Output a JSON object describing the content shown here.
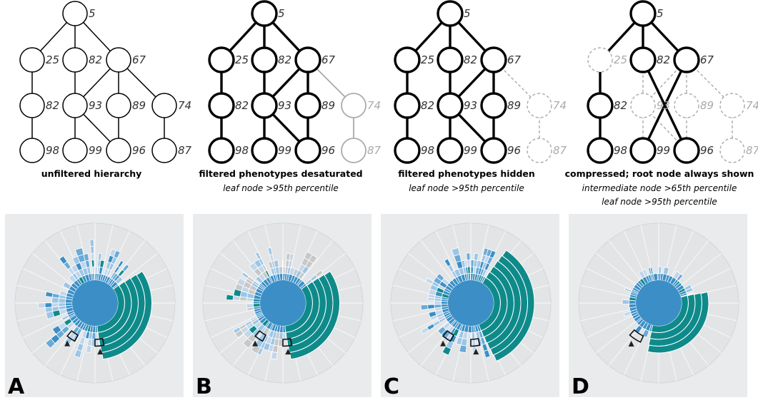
{
  "hierarchies": [
    {
      "caption": "unfiltered hierarchy",
      "subcaptions": [],
      "nodes": {
        "n5": {
          "label": "5",
          "state": "normal"
        },
        "n25": {
          "label": "25",
          "state": "normal"
        },
        "n82a": {
          "label": "82",
          "state": "normal"
        },
        "n67": {
          "label": "67",
          "state": "normal"
        },
        "n82b": {
          "label": "82",
          "state": "normal"
        },
        "n93": {
          "label": "93",
          "state": "normal"
        },
        "n89": {
          "label": "89",
          "state": "normal"
        },
        "n74": {
          "label": "74",
          "state": "normal"
        },
        "n98": {
          "label": "98",
          "state": "normal"
        },
        "n99": {
          "label": "99",
          "state": "normal"
        },
        "n96": {
          "label": "96",
          "state": "normal"
        },
        "n87": {
          "label": "87",
          "state": "normal"
        }
      },
      "edges": [
        [
          "n5",
          "n25",
          "normal"
        ],
        [
          "n5",
          "n82a",
          "normal"
        ],
        [
          "n5",
          "n67",
          "normal"
        ],
        [
          "n25",
          "n82b",
          "normal"
        ],
        [
          "n82a",
          "n93",
          "normal"
        ],
        [
          "n67",
          "n93",
          "normal"
        ],
        [
          "n67",
          "n89",
          "normal"
        ],
        [
          "n67",
          "n74",
          "normal"
        ],
        [
          "n82b",
          "n98",
          "normal"
        ],
        [
          "n93",
          "n99",
          "normal"
        ],
        [
          "n93",
          "n96",
          "normal"
        ],
        [
          "n89",
          "n96",
          "normal"
        ],
        [
          "n74",
          "n87",
          "normal"
        ]
      ]
    },
    {
      "caption": "filtered phenotypes desaturated",
      "subcaptions": [
        "leaf node >95th percentile"
      ],
      "nodes": {
        "n5": {
          "label": "5",
          "state": "bold"
        },
        "n25": {
          "label": "25",
          "state": "bold"
        },
        "n82a": {
          "label": "82",
          "state": "bold"
        },
        "n67": {
          "label": "67",
          "state": "bold"
        },
        "n82b": {
          "label": "82",
          "state": "bold"
        },
        "n93": {
          "label": "93",
          "state": "bold"
        },
        "n89": {
          "label": "89",
          "state": "bold"
        },
        "n74": {
          "label": "74",
          "state": "faded"
        },
        "n98": {
          "label": "98",
          "state": "bold"
        },
        "n99": {
          "label": "99",
          "state": "bold"
        },
        "n96": {
          "label": "96",
          "state": "bold"
        },
        "n87": {
          "label": "87",
          "state": "faded"
        }
      },
      "edges": [
        [
          "n5",
          "n25",
          "bold"
        ],
        [
          "n5",
          "n82a",
          "bold"
        ],
        [
          "n5",
          "n67",
          "bold"
        ],
        [
          "n25",
          "n82b",
          "bold"
        ],
        [
          "n82a",
          "n93",
          "bold"
        ],
        [
          "n67",
          "n93",
          "bold"
        ],
        [
          "n67",
          "n89",
          "bold"
        ],
        [
          "n67",
          "n74",
          "faded"
        ],
        [
          "n82b",
          "n98",
          "bold"
        ],
        [
          "n93",
          "n99",
          "bold"
        ],
        [
          "n93",
          "n96",
          "bold"
        ],
        [
          "n89",
          "n96",
          "bold"
        ],
        [
          "n74",
          "n87",
          "faded"
        ]
      ]
    },
    {
      "caption": "filtered phenotypes hidden",
      "subcaptions": [
        "leaf node >95th percentile"
      ],
      "nodes": {
        "n5": {
          "label": "5",
          "state": "bold"
        },
        "n25": {
          "label": "25",
          "state": "bold"
        },
        "n82a": {
          "label": "82",
          "state": "bold"
        },
        "n67": {
          "label": "67",
          "state": "bold"
        },
        "n82b": {
          "label": "82",
          "state": "bold"
        },
        "n93": {
          "label": "93",
          "state": "bold"
        },
        "n89": {
          "label": "89",
          "state": "bold"
        },
        "n74": {
          "label": "74",
          "state": "hidden"
        },
        "n98": {
          "label": "98",
          "state": "bold"
        },
        "n99": {
          "label": "99",
          "state": "bold"
        },
        "n96": {
          "label": "96",
          "state": "bold"
        },
        "n87": {
          "label": "87",
          "state": "hidden"
        }
      },
      "edges": [
        [
          "n5",
          "n25",
          "bold"
        ],
        [
          "n5",
          "n82a",
          "bold"
        ],
        [
          "n5",
          "n67",
          "bold"
        ],
        [
          "n25",
          "n82b",
          "bold"
        ],
        [
          "n82a",
          "n93",
          "bold"
        ],
        [
          "n67",
          "n93",
          "bold"
        ],
        [
          "n67",
          "n89",
          "bold"
        ],
        [
          "n67",
          "n74",
          "hidden"
        ],
        [
          "n82b",
          "n98",
          "bold"
        ],
        [
          "n93",
          "n99",
          "bold"
        ],
        [
          "n93",
          "n96",
          "bold"
        ],
        [
          "n89",
          "n96",
          "bold"
        ],
        [
          "n74",
          "n87",
          "hidden"
        ]
      ]
    },
    {
      "caption": "compressed; root node always shown",
      "subcaptions": [
        "intermediate node >65th percentile",
        "leaf node >95th percentile"
      ],
      "nodes": {
        "n5": {
          "label": "5",
          "state": "bold"
        },
        "n25": {
          "label": "25",
          "state": "hidden"
        },
        "n82a": {
          "label": "82",
          "state": "bold"
        },
        "n67": {
          "label": "67",
          "state": "bold"
        },
        "n82b": {
          "label": "82",
          "state": "bold"
        },
        "n93": {
          "label": "93",
          "state": "hidden"
        },
        "n89": {
          "label": "89",
          "state": "hidden"
        },
        "n74": {
          "label": "74",
          "state": "hidden"
        },
        "n98": {
          "label": "98",
          "state": "bold"
        },
        "n99": {
          "label": "99",
          "state": "bold"
        },
        "n96": {
          "label": "96",
          "state": "bold"
        },
        "n87": {
          "label": "87",
          "state": "hidden"
        }
      },
      "edges": [
        [
          "n5",
          "n25",
          "bold"
        ],
        [
          "n5",
          "n82a",
          "bold"
        ],
        [
          "n5",
          "n67",
          "bold"
        ],
        [
          "n25",
          "n82b",
          "bold"
        ],
        [
          "n82a",
          "n93",
          "hidden"
        ],
        [
          "n67",
          "n93",
          "hidden"
        ],
        [
          "n67",
          "n89",
          "hidden"
        ],
        [
          "n67",
          "n74",
          "hidden"
        ],
        [
          "n82b",
          "n98",
          "bold"
        ],
        [
          "n93",
          "n99",
          "hidden"
        ],
        [
          "n93",
          "n96",
          "hidden"
        ],
        [
          "n89",
          "n96",
          "hidden"
        ],
        [
          "n74",
          "n87",
          "hidden"
        ],
        [
          "n82a",
          "n96",
          "bold"
        ],
        [
          "n67",
          "n99",
          "bold"
        ]
      ]
    }
  ],
  "sunbursts": [
    {
      "label": "A",
      "seed": 11,
      "teal_start_deg": 53,
      "teal_end_deg": 175,
      "teal_depth": 5,
      "scatter": 0.58,
      "gray_fraction": 0.0,
      "left_spikes": 3,
      "arrowhead_count": 2
    },
    {
      "label": "B",
      "seed": 23,
      "teal_start_deg": 53,
      "teal_end_deg": 175,
      "teal_depth": 5,
      "scatter": 0.58,
      "gray_fraction": 0.33,
      "left_spikes": 3,
      "arrowhead_count": 2
    },
    {
      "label": "C",
      "seed": 37,
      "teal_start_deg": 30,
      "teal_end_deg": 160,
      "teal_depth": 6,
      "scatter": 0.5,
      "gray_fraction": 0.0,
      "left_spikes": 4,
      "arrowhead_count": 2
    },
    {
      "label": "D",
      "seed": 51,
      "teal_start_deg": 75,
      "teal_end_deg": 195,
      "teal_depth": 4,
      "scatter": 0.2,
      "gray_fraction": 0.0,
      "left_spikes": 0,
      "arrowhead_count": 1
    }
  ],
  "colors": {
    "teal": "#0f8a8a",
    "blue": "#3b8fc6",
    "mid_blue": "#6aaad6",
    "light_blue": "#9cc6e6",
    "pale_blue": "#c3d6ea",
    "gray_cell": "#c8c8c8",
    "panel_bg": "#e9ebed",
    "faded_gray": "#aaaaaa"
  }
}
